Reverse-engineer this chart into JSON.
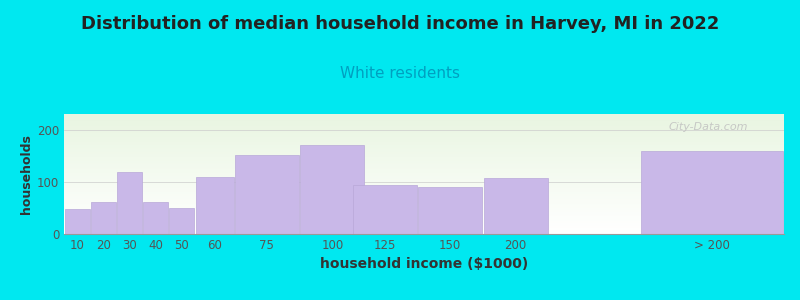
{
  "title": "Distribution of median household income in Harvey, MI in 2022",
  "subtitle": "White residents",
  "xlabel": "household income ($1000)",
  "ylabel": "households",
  "bar_labels": [
    "10",
    "20",
    "30",
    "40",
    "50",
    "60",
    "75",
    "100",
    "125",
    "150",
    "200",
    "> 200"
  ],
  "bar_values": [
    47,
    62,
    118,
    62,
    50,
    110,
    152,
    170,
    93,
    90,
    107,
    160
  ],
  "bar_color": "#c9b8e8",
  "bar_edge_color": "#b8a8d8",
  "background_outer": "#00e8f0",
  "background_inner_top": "#e6f5e0",
  "background_inner_bottom": "#f8f8f5",
  "title_fontsize": 13,
  "subtitle_fontsize": 11,
  "subtitle_color": "#00a0c0",
  "ylabel_fontsize": 9,
  "xlabel_fontsize": 10,
  "ylim": [
    0,
    230
  ],
  "yticks": [
    0,
    100,
    200
  ],
  "watermark": "City-Data.com",
  "bar_widths": [
    10,
    10,
    10,
    10,
    10,
    15,
    25,
    25,
    25,
    25,
    25,
    55
  ],
  "bar_lefts": [
    5,
    15,
    25,
    35,
    45,
    55,
    70,
    95,
    115,
    140,
    165,
    225
  ]
}
